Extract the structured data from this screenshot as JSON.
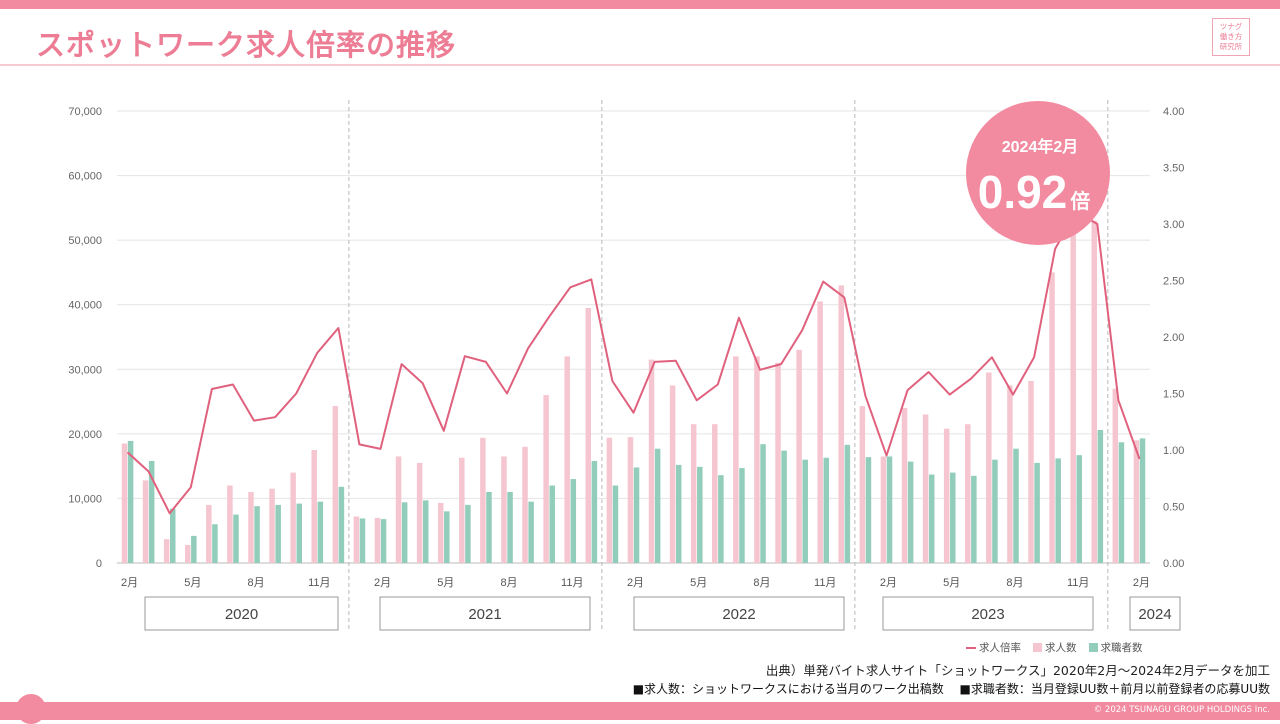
{
  "title": "スポットワーク求人倍率の推移",
  "logo_lines": [
    "ツナグ",
    "働き方",
    "研究所"
  ],
  "colors": {
    "accent": "#f28aa0",
    "jobs": "#f6c6d0",
    "seekers": "#92cdbb",
    "ratio": "#e0617d"
  },
  "callout": {
    "label": "2024年2月",
    "value": "0.92",
    "unit": "倍"
  },
  "source": "出典）単発バイト求人サイト「ショットワークス」2020年2月～2024年2月データを加工",
  "note": "■求人数：ショットワークスにおける当月のワーク出稿数　 ■求職者数：当月登録UU数＋前月以前登録者の応募UU数",
  "copyright": "© 2024 TSUNAGU GROUP HOLDINGS Inc.",
  "chart_data": {
    "type": "bar",
    "categories": [
      "2月",
      "3月",
      "4月",
      "5月",
      "6月",
      "7月",
      "8月",
      "9月",
      "10月",
      "11月",
      "12月",
      "1月",
      "2月",
      "3月",
      "4月",
      "5月",
      "6月",
      "7月",
      "8月",
      "9月",
      "10月",
      "11月",
      "12月",
      "1月",
      "2月",
      "3月",
      "4月",
      "5月",
      "6月",
      "7月",
      "8月",
      "9月",
      "10月",
      "11月",
      "12月",
      "1月",
      "2月",
      "3月",
      "4月",
      "5月",
      "6月",
      "7月",
      "8月",
      "9月",
      "10月",
      "11月",
      "12月",
      "1月",
      "2月"
    ],
    "x_tick_labels": [
      "2月",
      "5月",
      "8月",
      "11月",
      "2月",
      "5月",
      "8月",
      "11月",
      "2月",
      "5月",
      "8月",
      "11月",
      "2月",
      "5月",
      "8月",
      "11月",
      "2月"
    ],
    "year_labels": [
      "2020",
      "2021",
      "2022",
      "2023",
      "2024"
    ],
    "series": [
      {
        "name": "求人数",
        "axis": "left",
        "values": [
          18500,
          12800,
          3700,
          2800,
          9000,
          12000,
          11000,
          11500,
          14000,
          17500,
          24300,
          7200,
          7000,
          16500,
          15500,
          9300,
          16300,
          19400,
          16500,
          18000,
          26000,
          32000,
          39500,
          19400,
          19500,
          31500,
          27500,
          21500,
          21500,
          32000,
          32000,
          31000,
          33000,
          40500,
          43000,
          24300,
          16500,
          24000,
          23000,
          20800,
          21500,
          29500,
          27500,
          28200,
          45000,
          52000,
          53000,
          27000,
          19000
        ]
      },
      {
        "name": "求職者数",
        "axis": "left",
        "values": [
          18900,
          15800,
          8400,
          4200,
          6000,
          7500,
          8800,
          9000,
          9200,
          9500,
          11800,
          6900,
          6800,
          9400,
          9700,
          8000,
          9000,
          11000,
          11000,
          9500,
          12000,
          13000,
          15800,
          12000,
          14800,
          17700,
          15200,
          14900,
          13600,
          14700,
          18400,
          17400,
          16000,
          16300,
          18300,
          16400,
          16500,
          15700,
          13700,
          14000,
          13500,
          16000,
          17700,
          15500,
          16200,
          16700,
          20600,
          18700,
          19300
        ]
      },
      {
        "name": "求人倍率",
        "type": "line",
        "axis": "right",
        "values": [
          0.98,
          0.81,
          0.44,
          0.67,
          1.54,
          1.58,
          1.26,
          1.29,
          1.5,
          1.86,
          2.08,
          1.05,
          1.01,
          1.76,
          1.59,
          1.17,
          1.83,
          1.78,
          1.5,
          1.9,
          2.18,
          2.44,
          2.51,
          1.61,
          1.33,
          1.78,
          1.79,
          1.44,
          1.58,
          2.17,
          1.71,
          1.76,
          2.06,
          2.49,
          2.35,
          1.48,
          0.95,
          1.53,
          1.69,
          1.49,
          1.63,
          1.82,
          1.49,
          1.82,
          2.78,
          3.11,
          3.0,
          1.44,
          0.92
        ]
      }
    ],
    "legend": [
      "求人倍率",
      "求人数",
      "求職者数"
    ],
    "y_left": {
      "lim": [
        0,
        70000
      ],
      "ticks": [
        "0",
        "10,000",
        "20,000",
        "30,000",
        "40,000",
        "50,000",
        "60,000",
        "70,000"
      ]
    },
    "y_right": {
      "lim": [
        0,
        4
      ],
      "ticks": [
        "0.00",
        "0.50",
        "1.00",
        "1.50",
        "2.00",
        "2.50",
        "3.00",
        "3.50",
        "4.00"
      ]
    },
    "grid": true,
    "legend_position": "bottom-right"
  }
}
